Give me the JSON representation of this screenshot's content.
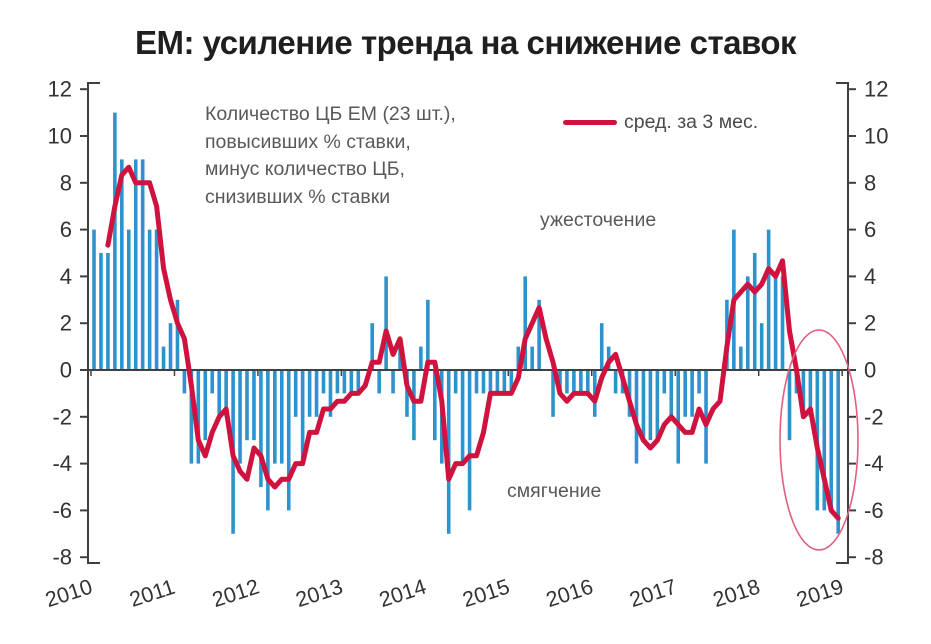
{
  "title": "EM: усиление тренда на снижение ставок",
  "annotation": {
    "line1": "Количество ЦБ  ЕМ (23 шт.),",
    "line2": "повысивших  % ставки,",
    "line3": "минус количество ЦБ,",
    "line4": "снизивших  % ставки"
  },
  "legend": {
    "label": "сред. за 3 мес."
  },
  "region_labels": {
    "tightening": "ужесточение",
    "easing": "смягчение"
  },
  "colors": {
    "bar": "#2E93CC",
    "line": "#D0123F",
    "ellipse": "#E0607E",
    "axis": "#3F3F3F",
    "tick_text": "#333333",
    "muted_text": "#595959",
    "title_text": "#1F1F1F"
  },
  "chart_data": {
    "type": "bar",
    "title": "EM: усиление тренда на снижение ставок",
    "description": "Количество ЦБ ЕМ (23 шт.), повысивших % ставки, минус количество ЦБ, снизивших % ставки; линия — среднее за 3 месяца",
    "x_tick_labels": [
      "2010",
      "2011",
      "2012",
      "2013",
      "2014",
      "2015",
      "2016",
      "2017",
      "2018",
      "2019"
    ],
    "y_ticks": [
      12,
      10,
      8,
      6,
      4,
      2,
      0,
      -2,
      -4,
      -6,
      -8
    ],
    "ylim": [
      -8,
      12
    ],
    "grid": false,
    "legend_position": "top-inside",
    "series": [
      {
        "name": "Количество ЦБ ЕМ, повысивших минус снизивших % ставки",
        "type": "bar",
        "period": "помесячно, янв 2010 — дек 2018",
        "values_by_year": {
          "2010": [
            6,
            5,
            5,
            11,
            9,
            6,
            9,
            9,
            6,
            6,
            1,
            2
          ],
          "2011": [
            3,
            -1,
            -4,
            -4,
            -3,
            -1,
            -2,
            -2,
            -7,
            -4,
            -3,
            -3
          ],
          "2012": [
            -5,
            -6,
            -4,
            -4,
            -6,
            -2,
            -4,
            -2,
            -2,
            -1,
            -2,
            -1
          ],
          "2013": [
            -1,
            -1,
            -1,
            0,
            2,
            -1,
            4,
            -1,
            1,
            -2,
            -3,
            1
          ],
          "2014": [
            3,
            -3,
            -4,
            -7,
            -1,
            -4,
            -6,
            -1,
            -1,
            -1,
            -1,
            -1
          ],
          "2015": [
            -1,
            1,
            4,
            1,
            3,
            0,
            -2,
            -1,
            -1,
            -1,
            -1,
            -1
          ],
          "2016": [
            -2,
            2,
            1,
            -1,
            -1,
            -2,
            -4,
            -3,
            -3,
            -3,
            -1,
            -2
          ],
          "2017": [
            -4,
            -2,
            -2,
            -1,
            -4,
            0,
            0,
            3,
            6,
            1,
            4,
            5
          ],
          "2018": [
            2,
            6,
            4,
            4,
            -3,
            -1,
            -2,
            -2,
            -6,
            -6,
            -6,
            -7
          ]
        }
      },
      {
        "name": "сред. за 3 мес.",
        "type": "line",
        "derivation": "3-месячная скользящая средняя значений столбцов"
      }
    ],
    "highlight": {
      "shape": "ellipse",
      "around": "конец 2018 — начало 2019"
    }
  }
}
